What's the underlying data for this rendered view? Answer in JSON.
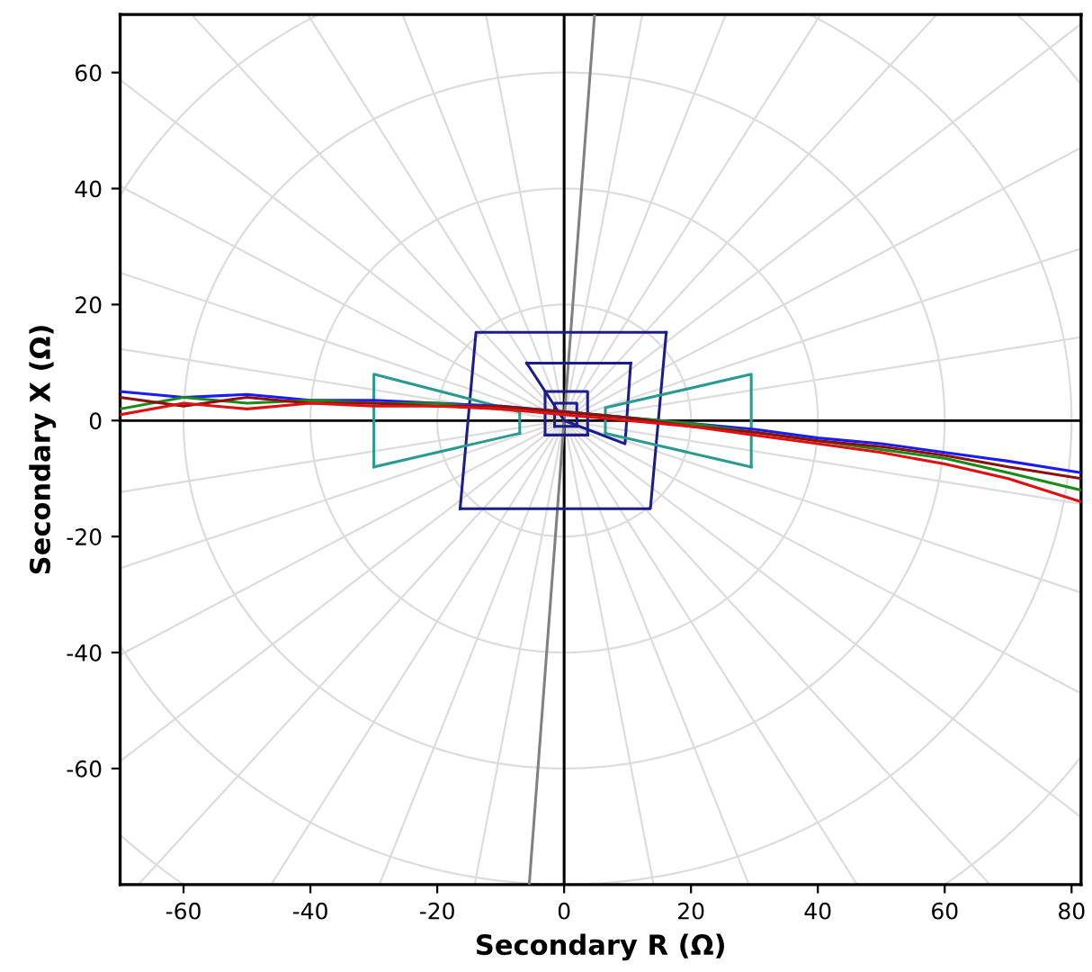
{
  "chart_data": {
    "type": "line",
    "xlabel": "Secondary R (Ω)",
    "ylabel": "Secondary X (Ω)",
    "xlim": [
      -70,
      81.5
    ],
    "ylim": [
      -80,
      70
    ],
    "xticks": [
      -60,
      -40,
      -20,
      0,
      20,
      40,
      60,
      80
    ],
    "yticks": [
      -60,
      -40,
      -20,
      0,
      20,
      40,
      60
    ],
    "marker": "none",
    "line_style": "solid",
    "ref_lines": [
      {
        "axis": "y",
        "value": 0,
        "color": "#000000"
      }
    ],
    "series": [
      {
        "color": "#000000",
        "x": [
          0,
          0
        ],
        "values": [
          -80,
          70
        ]
      },
      {
        "color": "#808080",
        "x": [
          -5.5,
          4.8
        ],
        "values": [
          -80,
          70
        ]
      },
      {
        "color": "#1c1c8c",
        "x": [
          -16.4,
          -13.9,
          16.1
        ],
        "values": [
          -15.2,
          15.2,
          15.2
        ]
      },
      {
        "color": "#1c1c8c",
        "x": [
          -16.4,
          13.6,
          16.1
        ],
        "values": [
          -15.2,
          -15.2,
          15.2
        ]
      },
      {
        "color": "#1c1c8c",
        "x": [
          -5.9,
          10.5
        ],
        "values": [
          9.9,
          9.9
        ]
      },
      {
        "color": "#1c1c8c",
        "x": [
          -5.9,
          0,
          9.6,
          10.5
        ],
        "values": [
          9.9,
          0,
          -4.0,
          9.9
        ]
      },
      {
        "color": "#1c1c8c",
        "x": [
          -3,
          -3,
          3.7,
          3.7
        ],
        "values": [
          -2.5,
          5,
          5,
          -2.5
        ]
      },
      {
        "color": "#1c1c8c",
        "x": [
          -3,
          3.7
        ],
        "values": [
          -2.5,
          -2.5
        ]
      },
      {
        "color": "#1c1c8c",
        "x": [
          -1.5,
          -1.5,
          2,
          2
        ],
        "values": [
          -1,
          3,
          3,
          -1
        ]
      },
      {
        "color": "#1c1c8c",
        "x": [
          -1.5,
          2
        ],
        "values": [
          -1,
          -1
        ]
      },
      {
        "color": "#2a9a90",
        "x": [
          -30,
          -30,
          -7,
          -7
        ],
        "values": [
          -8,
          8,
          1.5,
          -2.2
        ]
      },
      {
        "color": "#2a9a90",
        "x": [
          -30,
          -7
        ],
        "values": [
          -8,
          -2.2
        ]
      },
      {
        "color": "#2a9a90",
        "x": [
          6.5,
          6.5,
          29.5,
          29.5
        ],
        "values": [
          -2.2,
          2.2,
          8,
          -8
        ]
      },
      {
        "color": "#2a9a90",
        "x": [
          6.5,
          29.5
        ],
        "values": [
          -2.2,
          -8
        ]
      },
      {
        "color": "#1a1aff",
        "x": [
          -70,
          -60,
          -50,
          -40,
          -30,
          -20,
          -10,
          0,
          10,
          20,
          30,
          40,
          50,
          60,
          70,
          81.5
        ],
        "values": [
          5,
          4,
          4.5,
          3.5,
          3.5,
          3,
          2.5,
          1.5,
          0.5,
          -0.5,
          -1.5,
          -3,
          -4,
          -5.5,
          -7,
          -9
        ]
      },
      {
        "color": "#1a8a1a",
        "x": [
          -70,
          -60,
          -50,
          -40,
          -30,
          -20,
          -10,
          0,
          10,
          20,
          30,
          40,
          50,
          60,
          70,
          81.5
        ],
        "values": [
          2,
          4,
          3,
          3.5,
          3,
          3,
          2,
          1.5,
          0.5,
          -0.5,
          -2,
          -3.5,
          -5,
          -6.5,
          -9,
          -12
        ]
      },
      {
        "color": "#8b1010",
        "x": [
          -70,
          -60,
          -50,
          -40,
          -30,
          -20,
          -10,
          0,
          10,
          20,
          30,
          40,
          50,
          60,
          70,
          81.5
        ],
        "values": [
          4,
          2.5,
          4,
          3,
          3,
          2.5,
          2.5,
          1.5,
          0.5,
          -1,
          -2,
          -3.5,
          -4.5,
          -6,
          -8,
          -10
        ]
      },
      {
        "color": "#e01010",
        "x": [
          -70,
          -60,
          -50,
          -40,
          -30,
          -20,
          -10,
          0,
          10,
          20,
          30,
          40,
          50,
          60,
          70,
          81.5
        ],
        "values": [
          1,
          3,
          2,
          3,
          2.5,
          2.5,
          2,
          1,
          0,
          -1,
          -2.5,
          -4,
          -5.5,
          -7.5,
          -10,
          -14
        ]
      }
    ]
  }
}
